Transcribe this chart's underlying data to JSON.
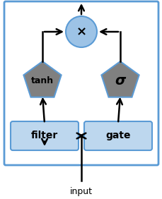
{
  "bg_color": "#ffffff",
  "border_color": "#5b9bd5",
  "box_fill": "#bdd7ee",
  "box_edge": "#5b9bd5",
  "circle_fill": "#9dc3e6",
  "circle_edge": "#5b9bd5",
  "pentagon_fill": "#808080",
  "pentagon_edge": "#5b9bd5",
  "arrow_color": "#000000",
  "text_color": "#000000",
  "filter_label": "filter",
  "gate_label": "gate",
  "tanh_label": "tanh",
  "sigma_label": "σ",
  "multiply_label": "×",
  "input_label": "input",
  "label_fontsize": 10,
  "bold_labels": true
}
